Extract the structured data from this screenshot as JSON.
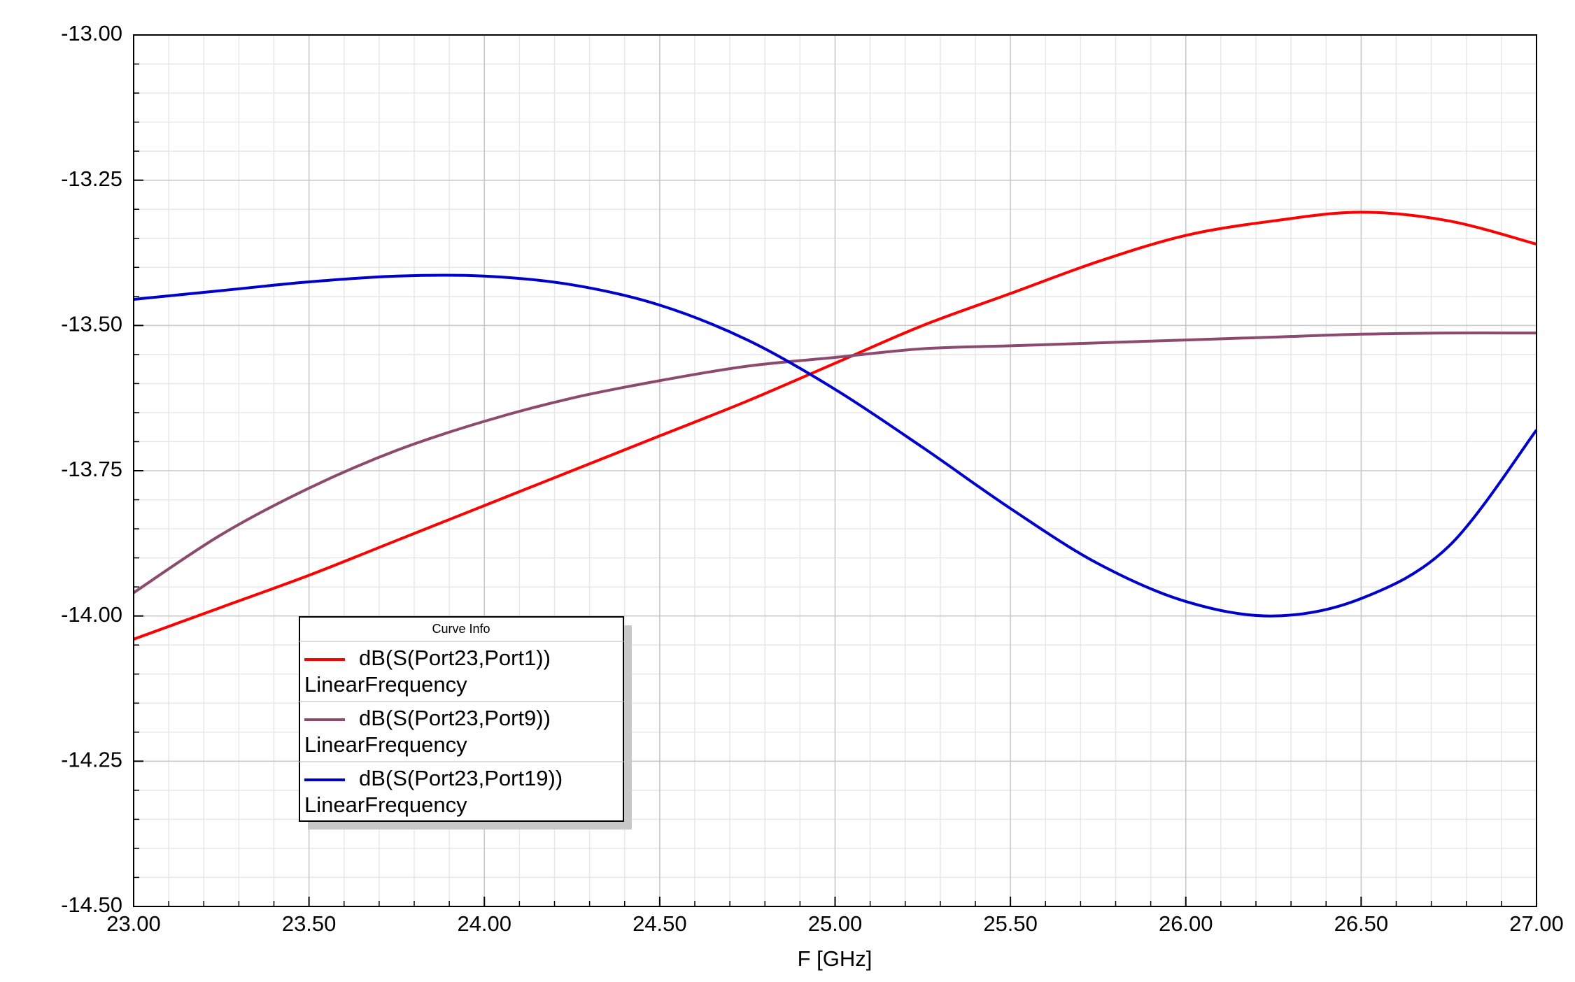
{
  "chart_data": {
    "type": "line",
    "x_label": "F [GHz]",
    "x": [
      23.0,
      23.25,
      23.5,
      23.75,
      24.0,
      24.25,
      24.5,
      24.75,
      25.0,
      25.25,
      25.5,
      25.75,
      26.0,
      26.25,
      26.5,
      26.75,
      27.0
    ],
    "series": [
      {
        "name": "dB(S(Port23,Port1))",
        "sweep": "LinearFrequency",
        "color": "#ff0000",
        "values": [
          -14.04,
          -13.985,
          -13.93,
          -13.87,
          -13.81,
          -13.75,
          -13.69,
          -13.63,
          -13.565,
          -13.5,
          -13.445,
          -13.39,
          -13.345,
          -13.32,
          -13.305,
          -13.32,
          -13.36
        ]
      },
      {
        "name": "dB(S(Port23,Port9))",
        "sweep": "LinearFrequency",
        "color": "#8b4a6e",
        "values": [
          -13.96,
          -13.86,
          -13.78,
          -13.715,
          -13.665,
          -13.625,
          -13.595,
          -13.57,
          -13.555,
          -13.54,
          -13.535,
          -13.53,
          -13.525,
          -13.52,
          -13.515,
          -13.513,
          -13.513
        ]
      },
      {
        "name": "dB(S(Port23,Port19))",
        "sweep": "LinearFrequency",
        "color": "#0000cc",
        "values": [
          -13.455,
          -13.44,
          -13.425,
          -13.415,
          -13.415,
          -13.43,
          -13.465,
          -13.525,
          -13.61,
          -13.71,
          -13.815,
          -13.91,
          -13.975,
          -14.0,
          -13.97,
          -13.88,
          -13.68
        ]
      }
    ],
    "legend_title": "Curve Info",
    "xlim": [
      23.0,
      27.0
    ],
    "ylim": [
      -14.5,
      -13.0
    ],
    "xticks": [
      {
        "value": 23.0,
        "label": "23.00"
      },
      {
        "value": 23.5,
        "label": "23.50"
      },
      {
        "value": 24.0,
        "label": "24.00"
      },
      {
        "value": 24.5,
        "label": "24.50"
      },
      {
        "value": 25.0,
        "label": "25.00"
      },
      {
        "value": 25.5,
        "label": "25.50"
      },
      {
        "value": 26.0,
        "label": "26.00"
      },
      {
        "value": 26.5,
        "label": "26.50"
      },
      {
        "value": 27.0,
        "label": "27.00"
      }
    ],
    "yticks": [
      {
        "value": -14.5,
        "label": "-14.50"
      },
      {
        "value": -14.25,
        "label": "-14.25"
      },
      {
        "value": -14.0,
        "label": "-14.00"
      },
      {
        "value": -13.75,
        "label": "-13.75"
      },
      {
        "value": -13.5,
        "label": "-13.50"
      },
      {
        "value": -13.25,
        "label": "-13.25"
      },
      {
        "value": -13.0,
        "label": "-13.00"
      }
    ],
    "grid": true
  }
}
